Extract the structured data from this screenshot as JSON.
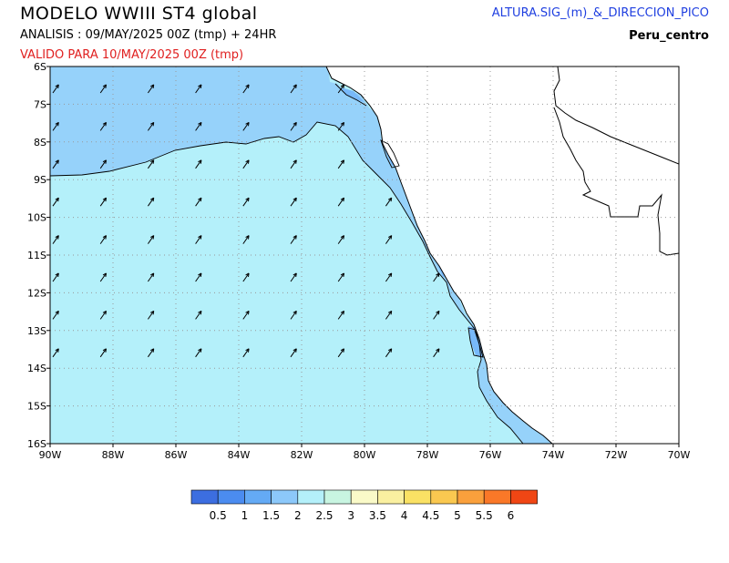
{
  "header": {
    "title": "MODELO WWIII ST4 global",
    "analysis": "ANALISIS : 09/MAY/2025 00Z  (tmp) + 24HR",
    "valid": "VALIDO PARA  10/MAY/2025 00Z  (tmp)",
    "product": "ALTURA.SIG_(m)_&_DIRECCION_PICO",
    "region": "Peru_centro"
  },
  "map": {
    "lon_ticks": [
      "90W",
      "88W",
      "86W",
      "84W",
      "82W",
      "80W",
      "78W",
      "76W",
      "74W",
      "72W",
      "70W"
    ],
    "lat_ticks": [
      "6S",
      "7S",
      "8S",
      "9S",
      "10S",
      "11S",
      "12S",
      "13S",
      "14S",
      "15S",
      "16S"
    ],
    "lon_range": [
      -90,
      -70
    ],
    "lat_range": [
      -6,
      -16
    ],
    "colors": {
      "land": "#ffffff",
      "band_1_5": "#96d2fa",
      "band_2_2_5": "#b4f0fa",
      "band_1_1_5": "#78b9fa"
    },
    "arrow_direction_deg_from_north": 35
  },
  "colorbar": {
    "labels": [
      "0.5",
      "1",
      "1.5",
      "2",
      "2.5",
      "3",
      "3.5",
      "4",
      "4.5",
      "5",
      "5.5",
      "6"
    ],
    "colors": [
      "#3c6ee0",
      "#4b8cf0",
      "#64aaf5",
      "#8cc8fa",
      "#b4f0fa",
      "#c8f5e1",
      "#fafac8",
      "#faf0a0",
      "#fae164",
      "#fac850",
      "#faa03c",
      "#fa7828",
      "#f04614"
    ]
  }
}
